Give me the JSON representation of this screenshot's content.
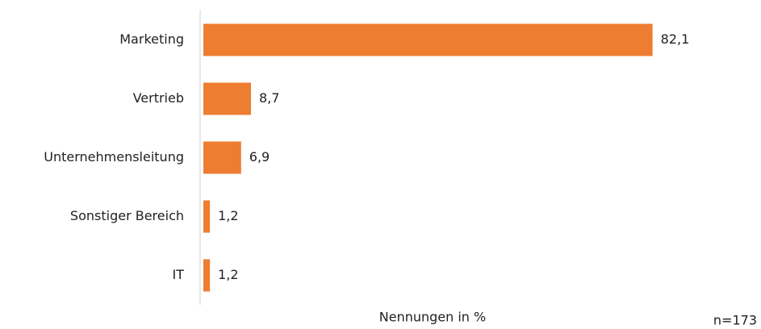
{
  "chart_data": {
    "type": "hbar",
    "categories": [
      "Marketing",
      "Vertrieb",
      "Unternehmensleitung",
      "Sonstiger Bereich",
      "IT"
    ],
    "values": [
      82.1,
      8.7,
      6.9,
      1.2,
      1.2
    ],
    "value_labels": [
      "82,1",
      "8,7",
      "6,9",
      "1,2",
      "1,2"
    ],
    "color": "#ed7d31",
    "xlim": [
      0,
      100
    ],
    "x_label": "Nennungen in %",
    "note": "n=173"
  }
}
